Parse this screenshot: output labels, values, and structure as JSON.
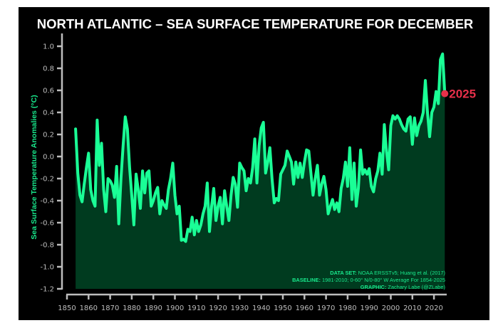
{
  "chart_data": {
    "type": "area",
    "title": "NORTH ATLANTIC – SEA SURFACE TEMPERATURE FOR DECEMBER",
    "xlabel": "",
    "ylabel": "Sea Surface Temperature Anomalies (°C)",
    "xlim": [
      1850,
      2026
    ],
    "ylim": [
      -1.2,
      1.0
    ],
    "xticks": [
      1850,
      1860,
      1870,
      1880,
      1890,
      1900,
      1910,
      1920,
      1930,
      1940,
      1950,
      1960,
      1970,
      1980,
      1990,
      2000,
      2010,
      2020
    ],
    "yticks": [
      "1.0",
      "0.8",
      "0.6",
      "0.4",
      "0.2",
      "0.0",
      "-0.2",
      "-0.4",
      "-0.6",
      "-0.8",
      "-1.0",
      "-1.2"
    ],
    "grid": false,
    "start_year": 1854,
    "values": [
      0.25,
      -0.15,
      -0.35,
      -0.41,
      -0.25,
      -0.1,
      0.03,
      -0.3,
      -0.4,
      -0.45,
      0.33,
      -0.08,
      0.12,
      -0.3,
      -0.5,
      -0.2,
      -0.22,
      -0.26,
      -0.37,
      -0.09,
      -0.61,
      -0.2,
      0.1,
      0.36,
      0.25,
      -0.1,
      -0.35,
      -0.62,
      -0.16,
      -0.3,
      -0.47,
      -0.13,
      -0.33,
      -0.15,
      -0.13,
      -0.45,
      -0.4,
      -0.33,
      -0.28,
      -0.52,
      -0.4,
      -0.44,
      -0.47,
      -0.3,
      -0.2,
      -0.06,
      -0.35,
      -0.52,
      -0.45,
      -0.76,
      -0.75,
      -0.77,
      -0.66,
      -0.68,
      -0.55,
      -0.71,
      -0.58,
      -0.68,
      -0.62,
      -0.52,
      -0.45,
      -0.24,
      -0.68,
      -0.45,
      -0.29,
      -0.58,
      -0.45,
      -0.37,
      -0.61,
      -0.31,
      -0.45,
      -0.58,
      -0.35,
      -0.19,
      -0.25,
      -0.46,
      -0.06,
      -0.1,
      -0.13,
      -0.31,
      -0.2,
      -0.24,
      -0.1,
      0.16,
      -0.24,
      0.1,
      0.26,
      0.31,
      -0.15,
      -0.05,
      0.08,
      -0.2,
      -0.42,
      -0.38,
      -0.4,
      -0.16,
      -0.12,
      -0.08,
      0.05,
      0.0,
      -0.05,
      -0.25,
      -0.05,
      -0.19,
      -0.06,
      -0.19,
      -0.05,
      0.06,
      0.05,
      -0.15,
      -0.35,
      -0.2,
      -0.08,
      -0.35,
      -0.25,
      -0.18,
      -0.3,
      -0.52,
      -0.45,
      -0.39,
      -0.48,
      -0.42,
      -0.5,
      -0.29,
      -0.2,
      -0.05,
      -0.27,
      0.08,
      -0.39,
      -0.06,
      -0.45,
      -0.29,
      0.06,
      -0.16,
      -0.12,
      -0.16,
      -0.11,
      -0.27,
      -0.32,
      -0.2,
      -0.13,
      0.03,
      -0.16,
      0.29,
      0.05,
      -0.12,
      0.28,
      0.37,
      0.34,
      0.37,
      0.34,
      0.29,
      0.25,
      0.23,
      0.34,
      0.36,
      0.11,
      0.35,
      0.19,
      0.28,
      0.32,
      0.4,
      0.69,
      0.4,
      0.18,
      0.4,
      0.45,
      0.59,
      0.48,
      0.88,
      0.93,
      0.57
    ],
    "highlight": {
      "label": "2025",
      "year": 2025,
      "value": 0.57
    },
    "colors": {
      "line": "#1aff96",
      "fill": "#003b1f",
      "highlight": "#e8304a",
      "background": "#000000"
    },
    "annotations": [
      {
        "key": "DATA SET:",
        "text": " NOAA ERSSTv5; Huang et al. (2017)"
      },
      {
        "key": "BASELINE:",
        "text": " 1981-2010; 0-60° N/0-80° W Average For 1854-2025"
      },
      {
        "key": "GRAPHIC:",
        "text": " Zachary Labe (@ZLabe)"
      }
    ]
  }
}
